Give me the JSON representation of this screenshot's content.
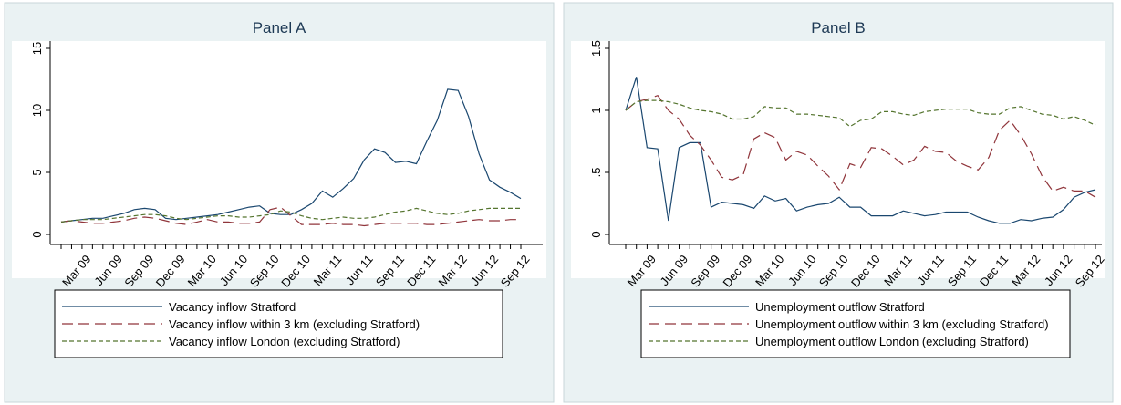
{
  "chart_data": [
    {
      "type": "line",
      "title": "Panel A",
      "x_label": "month",
      "categories": [
        null,
        null,
        "Mar 09",
        null,
        null,
        "Jun 09",
        null,
        null,
        "Sep 09",
        null,
        null,
        "Dec 09",
        null,
        null,
        "Mar 10",
        null,
        null,
        "Jun 10",
        null,
        null,
        "Sep 10",
        null,
        null,
        "Dec 10",
        null,
        null,
        "Mar 11",
        null,
        null,
        "Jun 11",
        null,
        null,
        "Sep 11",
        null,
        null,
        "Dec 11",
        null,
        null,
        "Mar 12",
        null,
        null,
        "Jun 12",
        null,
        null,
        "Sep 12"
      ],
      "ylim": [
        0,
        15
      ],
      "yticks": [
        0,
        5,
        10,
        15
      ],
      "series": [
        {
          "name": "Vacancy inflow Stratford",
          "color": "#1a476f",
          "dash": "none",
          "values": [
            1.0,
            1.1,
            1.2,
            1.3,
            1.3,
            1.5,
            1.7,
            2.0,
            2.1,
            2.0,
            1.3,
            1.2,
            1.3,
            1.4,
            1.5,
            1.6,
            1.8,
            2.0,
            2.2,
            2.3,
            1.7,
            1.6,
            1.6,
            2.0,
            2.5,
            3.5,
            3.0,
            3.7,
            4.5,
            6.0,
            6.9,
            6.6,
            5.8,
            5.9,
            5.7,
            7.5,
            9.2,
            11.7,
            11.6,
            9.5,
            6.5,
            4.4,
            3.8,
            3.4,
            2.9
          ]
        },
        {
          "name": "Vacancy inflow within 3 km (excluding Stratford)",
          "color": "#90353b",
          "dash": "12 6",
          "values": [
            1.0,
            1.1,
            1.0,
            0.9,
            0.9,
            1.0,
            1.1,
            1.3,
            1.4,
            1.3,
            1.1,
            0.9,
            0.8,
            1.0,
            1.2,
            1.0,
            1.0,
            0.9,
            0.9,
            1.0,
            2.0,
            2.2,
            1.5,
            0.8,
            0.8,
            0.8,
            0.9,
            0.8,
            0.8,
            0.7,
            0.8,
            0.9,
            0.9,
            0.9,
            0.9,
            0.8,
            0.8,
            0.9,
            1.0,
            1.1,
            1.2,
            1.1,
            1.1,
            1.2,
            1.2
          ]
        },
        {
          "name": "Vacancy inflow London (excluding Stratford)",
          "color": "#55752f",
          "dash": "5 3",
          "values": [
            1.0,
            1.1,
            1.2,
            1.2,
            1.2,
            1.3,
            1.4,
            1.5,
            1.6,
            1.6,
            1.5,
            1.3,
            1.2,
            1.3,
            1.4,
            1.5,
            1.5,
            1.4,
            1.4,
            1.5,
            1.6,
            1.9,
            1.8,
            1.5,
            1.3,
            1.2,
            1.3,
            1.4,
            1.3,
            1.3,
            1.4,
            1.6,
            1.8,
            1.9,
            2.1,
            1.9,
            1.7,
            1.6,
            1.7,
            1.9,
            2.0,
            2.1,
            2.1,
            2.1,
            2.1
          ]
        }
      ]
    },
    {
      "type": "line",
      "title": "Panel B",
      "x_label": "month",
      "categories": [
        null,
        null,
        "Mar 09",
        null,
        null,
        "Jun 09",
        null,
        null,
        "Sep 09",
        null,
        null,
        "Dec 09",
        null,
        null,
        "Mar 10",
        null,
        null,
        "Jun 10",
        null,
        null,
        "Sep 10",
        null,
        null,
        "Dec 10",
        null,
        null,
        "Mar 11",
        null,
        null,
        "Jun 11",
        null,
        null,
        "Sep 11",
        null,
        null,
        "Dec 11",
        null,
        null,
        "Mar 12",
        null,
        null,
        "Jun 12",
        null,
        null,
        "Sep 12"
      ],
      "ylim": [
        0,
        1.5
      ],
      "yticks": [
        0,
        {
          "value": 0.5,
          "label": ".5"
        },
        1,
        1.5
      ],
      "series": [
        {
          "name": "Unemployment outflow Stratford",
          "color": "#1a476f",
          "dash": "none",
          "values": [
            1.0,
            1.27,
            0.7,
            0.69,
            0.11,
            0.7,
            0.74,
            0.74,
            0.22,
            0.26,
            0.25,
            0.24,
            0.21,
            0.31,
            0.27,
            0.29,
            0.19,
            0.22,
            0.24,
            0.25,
            0.3,
            0.22,
            0.22,
            0.15,
            0.15,
            0.15,
            0.19,
            0.17,
            0.15,
            0.16,
            0.18,
            0.18,
            0.18,
            0.14,
            0.11,
            0.09,
            0.09,
            0.12,
            0.11,
            0.13,
            0.14,
            0.2,
            0.3,
            0.34,
            0.36
          ]
        },
        {
          "name": "Unemployment outflow within 3 km (excluding Stratford)",
          "color": "#90353b",
          "dash": "12 6",
          "values": [
            1.0,
            1.07,
            1.09,
            1.12,
            1.0,
            0.93,
            0.8,
            0.72,
            0.6,
            0.46,
            0.44,
            0.48,
            0.77,
            0.82,
            0.78,
            0.6,
            0.67,
            0.64,
            0.55,
            0.47,
            0.36,
            0.57,
            0.54,
            0.7,
            0.69,
            0.63,
            0.56,
            0.6,
            0.71,
            0.67,
            0.66,
            0.59,
            0.55,
            0.52,
            0.62,
            0.84,
            0.92,
            0.8,
            0.65,
            0.47,
            0.35,
            0.38,
            0.35,
            0.35,
            0.3
          ]
        },
        {
          "name": "Unemployment outflow London (excluding Stratford)",
          "color": "#55752f",
          "dash": "5 3",
          "values": [
            1.0,
            1.07,
            1.08,
            1.08,
            1.07,
            1.05,
            1.02,
            1.0,
            0.99,
            0.97,
            0.93,
            0.93,
            0.95,
            1.03,
            1.02,
            1.02,
            0.97,
            0.97,
            0.96,
            0.95,
            0.94,
            0.87,
            0.92,
            0.93,
            0.99,
            0.99,
            0.97,
            0.96,
            0.99,
            1.0,
            1.01,
            1.01,
            1.01,
            0.98,
            0.97,
            0.97,
            1.02,
            1.03,
            1.0,
            0.97,
            0.96,
            0.93,
            0.95,
            0.92,
            0.88
          ]
        }
      ]
    }
  ]
}
